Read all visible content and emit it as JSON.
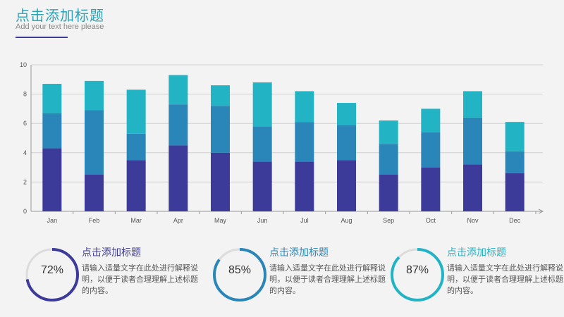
{
  "header": {
    "title": "点击添加标题",
    "subtitle": "Add your text here please"
  },
  "chart_data": {
    "type": "bar",
    "stacked": true,
    "categories": [
      "Jan",
      "Feb",
      "Mar",
      "Apr",
      "May",
      "Jun",
      "Jul",
      "Aug",
      "Sep",
      "Oct",
      "Nov",
      "Dec"
    ],
    "series": [
      {
        "values": [
          4.3,
          2.5,
          3.5,
          4.5,
          4.0,
          3.4,
          3.4,
          3.5,
          2.5,
          3.0,
          3.2,
          2.6
        ],
        "color": "#3d3b9a"
      },
      {
        "values": [
          2.4,
          4.4,
          1.8,
          2.8,
          3.2,
          2.4,
          2.7,
          2.4,
          2.1,
          2.4,
          3.2,
          1.5
        ],
        "color": "#2a86b8"
      },
      {
        "values": [
          2.0,
          2.0,
          3.0,
          2.0,
          1.4,
          3.0,
          2.1,
          1.5,
          1.6,
          1.6,
          1.8,
          2.0
        ],
        "color": "#22b3c4"
      }
    ],
    "ylim": [
      0,
      10
    ],
    "yticks": [
      0,
      2,
      4,
      6,
      8,
      10
    ],
    "grid": true,
    "xlabel": "",
    "ylabel": ""
  },
  "kpis": [
    {
      "percent": "72%",
      "value": 0.72,
      "title": "点击添加标题",
      "text": "请输入适量文字在此处进行解释说明，以便于读者合理理解上述标题的内容。",
      "color": "#3d3b9a"
    },
    {
      "percent": "85%",
      "value": 0.85,
      "title": "点击添加标题",
      "text": "请输入适量文字在此处进行解释说明，以便于读者合理理解上述标题的内容。",
      "color": "#2a86b8"
    },
    {
      "percent": "87%",
      "value": 0.87,
      "title": "点击添加标题",
      "text": "请输入适量文字在此处进行解释说明，以便于读者合理理解上述标题的内容。",
      "color": "#22b3c4"
    }
  ]
}
